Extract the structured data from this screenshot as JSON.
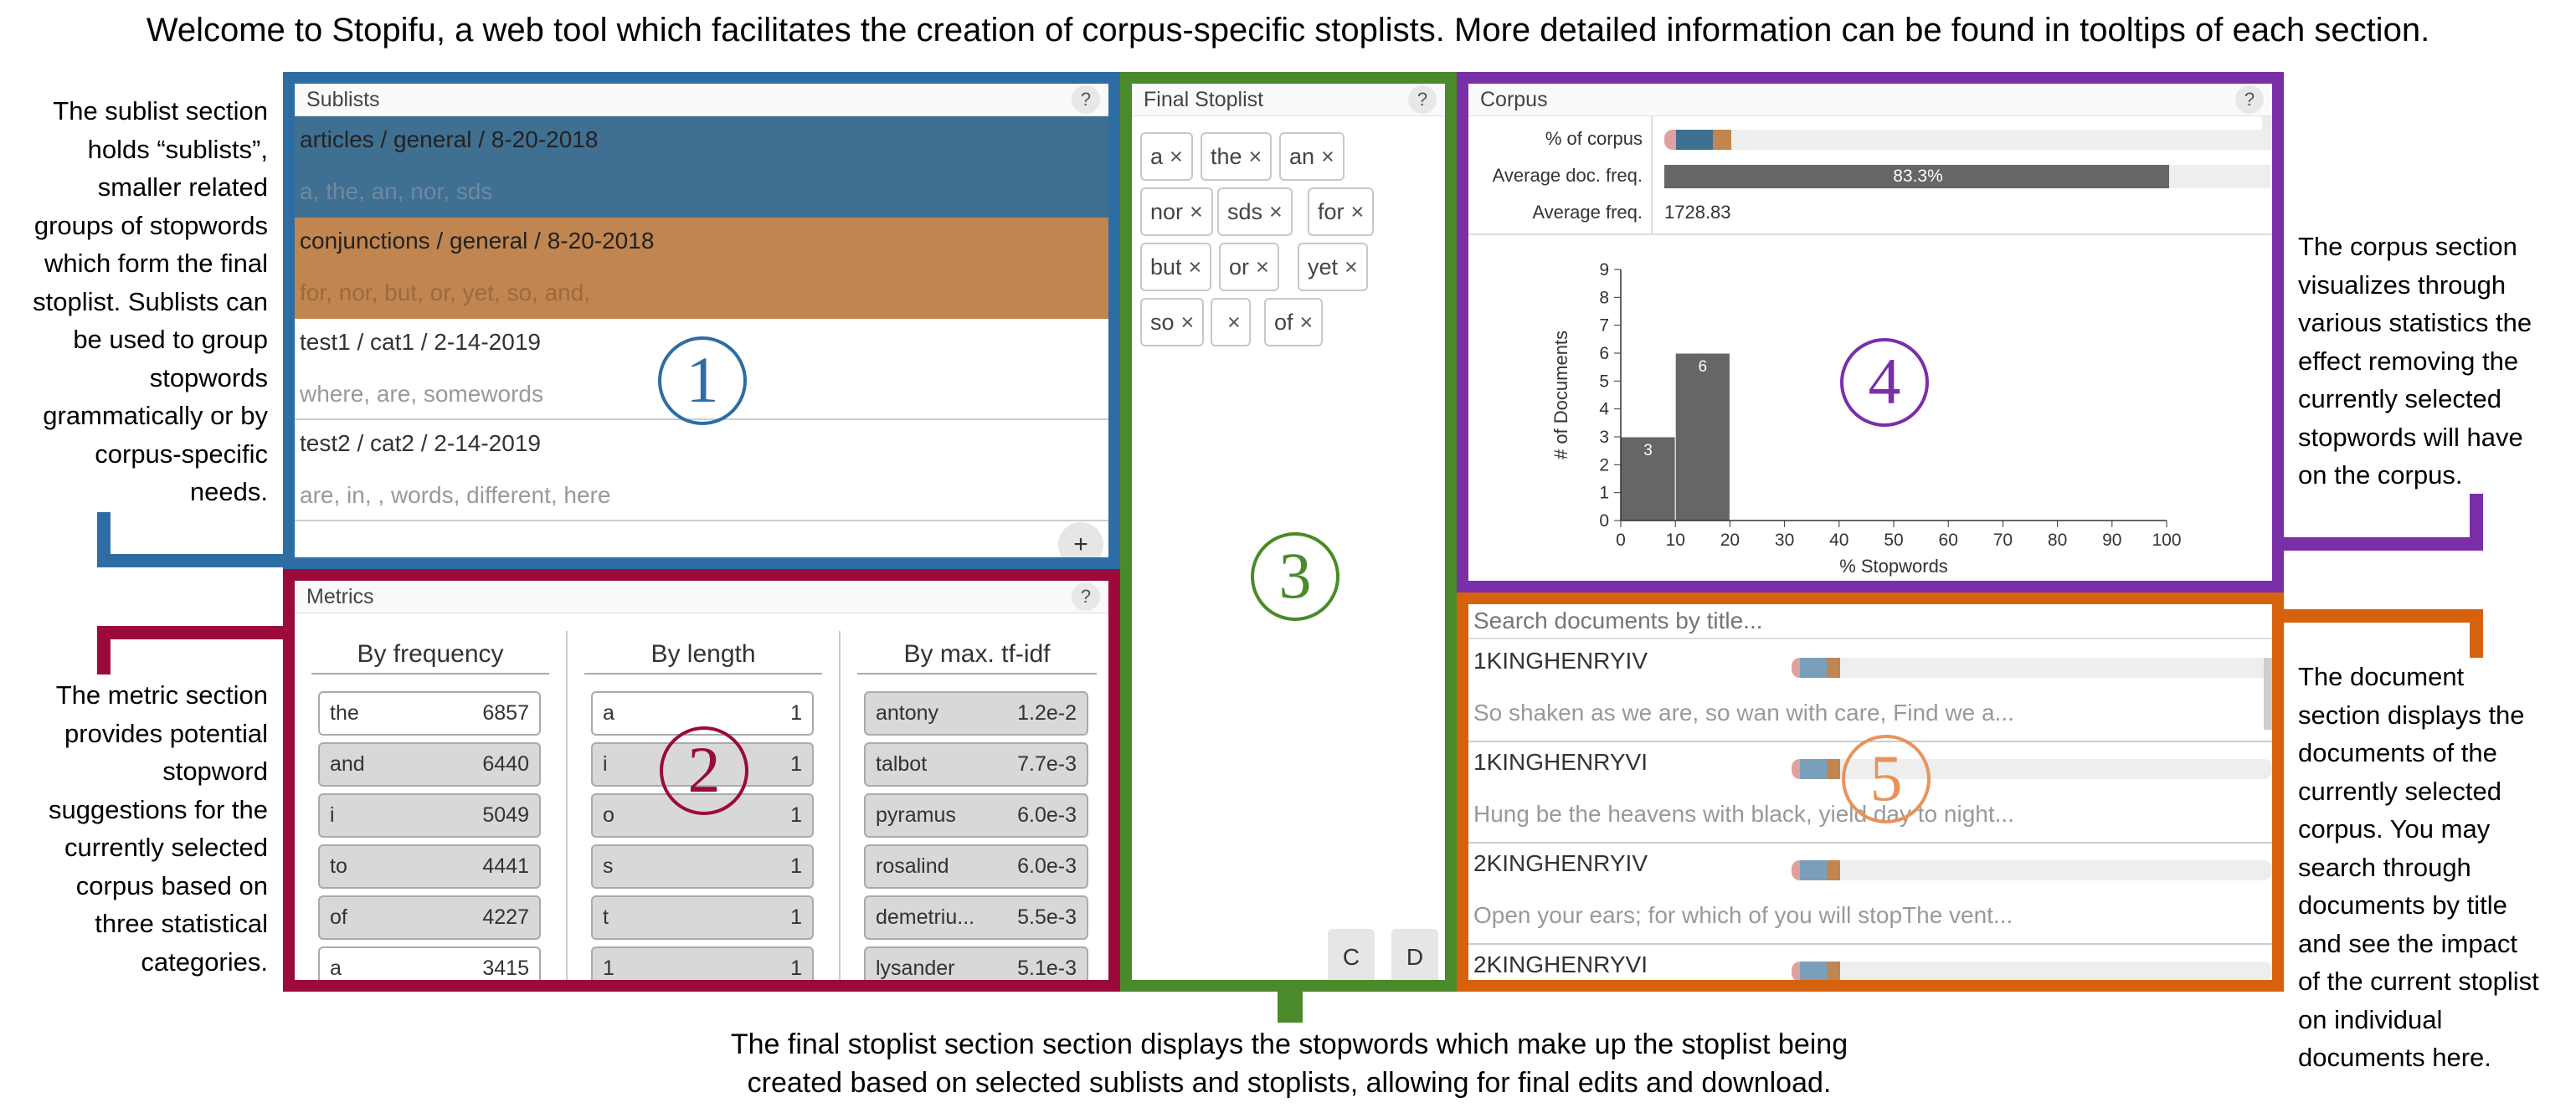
{
  "intro": "Welcome to Stopifu, a web tool which facilitates the creation of corpus-specific stoplists. More detailed information can be found in tooltips of each section.",
  "colors": {
    "sublists": "#2e6da4",
    "metrics": "#9b0a3a",
    "final": "#4a8a2a",
    "corpus": "#7a2fa8",
    "documents": "#d7620e",
    "row_blue": "#3f6f91",
    "row_orange": "#c18550"
  },
  "annotations": {
    "sublists": [
      "The sublist section",
      "holds “sublists”,",
      "smaller related",
      "groups of stopwords",
      "which form the final",
      "stoplist. Sublists can",
      "be used to group",
      "stopwords",
      "grammatically or by",
      "corpus-specific",
      "needs."
    ],
    "metrics": [
      "The metric section",
      "provides potential",
      "stopword",
      "suggestions for the",
      "currently selected",
      "corpus based on",
      "three statistical",
      "categories."
    ],
    "corpus": [
      "The corpus section",
      "visualizes through",
      "various statistics the",
      "effect removing the",
      "currently selected",
      "stopwords will have",
      "on the corpus."
    ],
    "documents": [
      "The document",
      "section displays the",
      "documents of the",
      "currently selected",
      "corpus. You may",
      "search through",
      "documents by title",
      "and see the impact",
      "of the current stoplist",
      "on individual",
      "documents here."
    ],
    "final": [
      "The final stoplist section section displays the stopwords which make up the stoplist being",
      "created based on selected sublists and stoplists, allowing for final edits and download."
    ]
  },
  "sublists": {
    "title": "Sublists",
    "help": "?",
    "number": "1",
    "add": "+",
    "items": [
      {
        "title": "articles / general / 8-20-2018",
        "words": "a, the, an, nor, sds"
      },
      {
        "title": "conjunctions / general / 8-20-2018",
        "words": "for, nor, but, or, yet, so, and,"
      },
      {
        "title": "test1 / cat1 / 2-14-2019",
        "words": "where, are, somewords"
      },
      {
        "title": "test2 / cat2 / 2-14-2019",
        "words": "are, in, , words, different, here"
      }
    ]
  },
  "metrics": {
    "title": "Metrics",
    "help": "?",
    "number": "2",
    "columns": [
      {
        "header": "By frequency",
        "rows": [
          [
            "the",
            "6857"
          ],
          [
            "and",
            "6440"
          ],
          [
            "i",
            "5049"
          ],
          [
            "to",
            "4441"
          ],
          [
            "of",
            "4227"
          ],
          [
            "a",
            "3415"
          ]
        ],
        "grey": [
          false,
          true,
          true,
          true,
          true,
          false
        ]
      },
      {
        "header": "By length",
        "rows": [
          [
            "a",
            "1"
          ],
          [
            "i",
            "1"
          ],
          [
            "o",
            "1"
          ],
          [
            "s",
            "1"
          ],
          [
            "t",
            "1"
          ],
          [
            "1",
            "1"
          ]
        ],
        "grey": [
          false,
          true,
          true,
          true,
          true,
          true
        ]
      },
      {
        "header": "By max. tf-idf",
        "rows": [
          [
            "antony",
            "1.2e-2"
          ],
          [
            "talbot",
            "7.7e-3"
          ],
          [
            "pyramus",
            "6.0e-3"
          ],
          [
            "rosalind",
            "6.0e-3"
          ],
          [
            "demetriu...",
            "5.5e-3"
          ],
          [
            "lysander",
            "5.1e-3"
          ]
        ],
        "grey": [
          true,
          true,
          true,
          true,
          true,
          true
        ]
      }
    ]
  },
  "final": {
    "title": "Final Stoplist",
    "help": "?",
    "number": "3",
    "chips": [
      "a",
      "the",
      "an",
      "nor",
      "sds",
      "for",
      "but",
      "or",
      "yet",
      "so",
      "",
      "of"
    ],
    "close": "×",
    "btn_c": "C",
    "btn_d": "D"
  },
  "corpus": {
    "title": "Corpus",
    "help": "?",
    "number": "4",
    "stats": [
      {
        "label": "% of corpus",
        "value": ""
      },
      {
        "label": "Average doc. freq.",
        "value": "83.3%",
        "fraction": 0.833
      },
      {
        "label": "Average freq.",
        "value": "1728.83"
      }
    ]
  },
  "chart_data": {
    "type": "bar",
    "title": "",
    "xlabel": "% Stopwords",
    "ylabel": "# of Documents",
    "xlim": [
      0,
      100
    ],
    "ylim": [
      0,
      9
    ],
    "x_ticks": [
      0,
      10,
      20,
      30,
      40,
      50,
      60,
      70,
      80,
      90,
      100
    ],
    "y_ticks": [
      0,
      1,
      2,
      3,
      4,
      5,
      6,
      7,
      8,
      9
    ],
    "bins": [
      {
        "x0": 0,
        "x1": 10,
        "value": 3
      },
      {
        "x0": 10,
        "x1": 20,
        "value": 6
      }
    ]
  },
  "documents": {
    "number": "5",
    "search_placeholder": "Search documents by title...",
    "items": [
      {
        "title": "1KINGHENRYIV",
        "snippet": "So shaken as we are, so wan with care, Find we a..."
      },
      {
        "title": "1KINGHENRYVI",
        "snippet": "Hung be the heavens with black, yield day to night..."
      },
      {
        "title": "2KINGHENRYIV",
        "snippet": "Open your ears; for which of you will stopThe vent..."
      },
      {
        "title": "2KINGHENRYVI",
        "snippet": ""
      }
    ]
  }
}
